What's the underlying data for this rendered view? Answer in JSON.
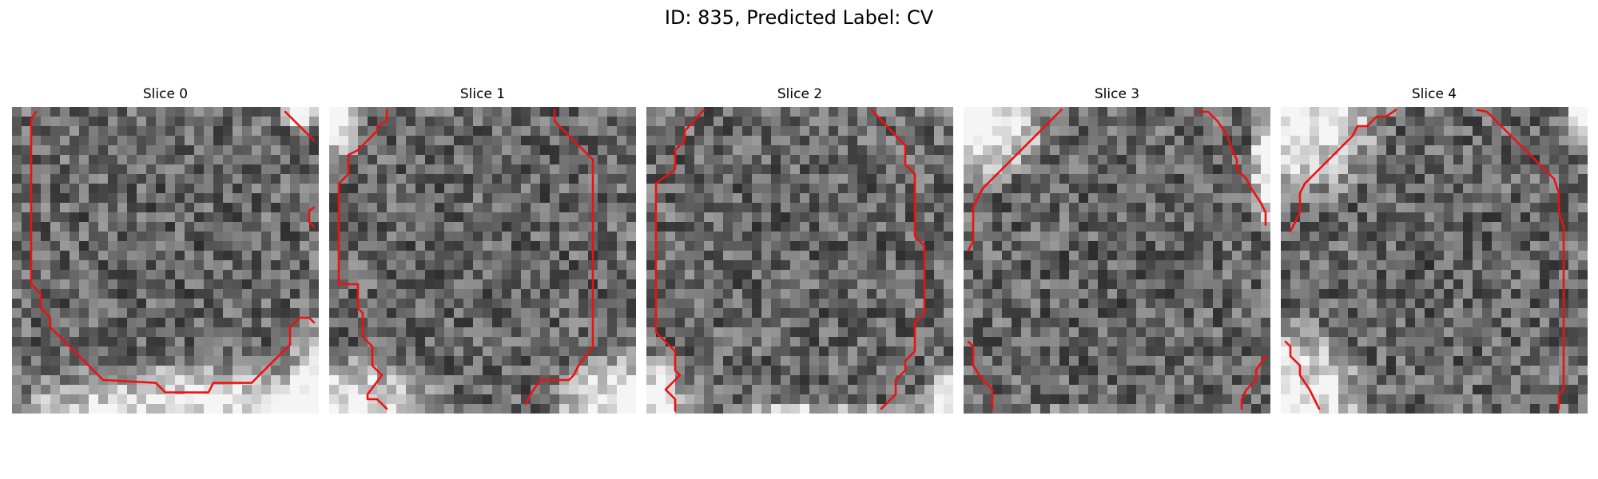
{
  "figure": {
    "title": "ID: 835, Predicted Label: CV"
  },
  "colors": {
    "contour": "#ee1111",
    "background": "#ffffff"
  },
  "slices": [
    {
      "title": "Slice 0"
    },
    {
      "title": "Slice 1"
    },
    {
      "title": "Slice 2"
    },
    {
      "title": "Slice 3"
    },
    {
      "title": "Slice 4"
    }
  ]
}
